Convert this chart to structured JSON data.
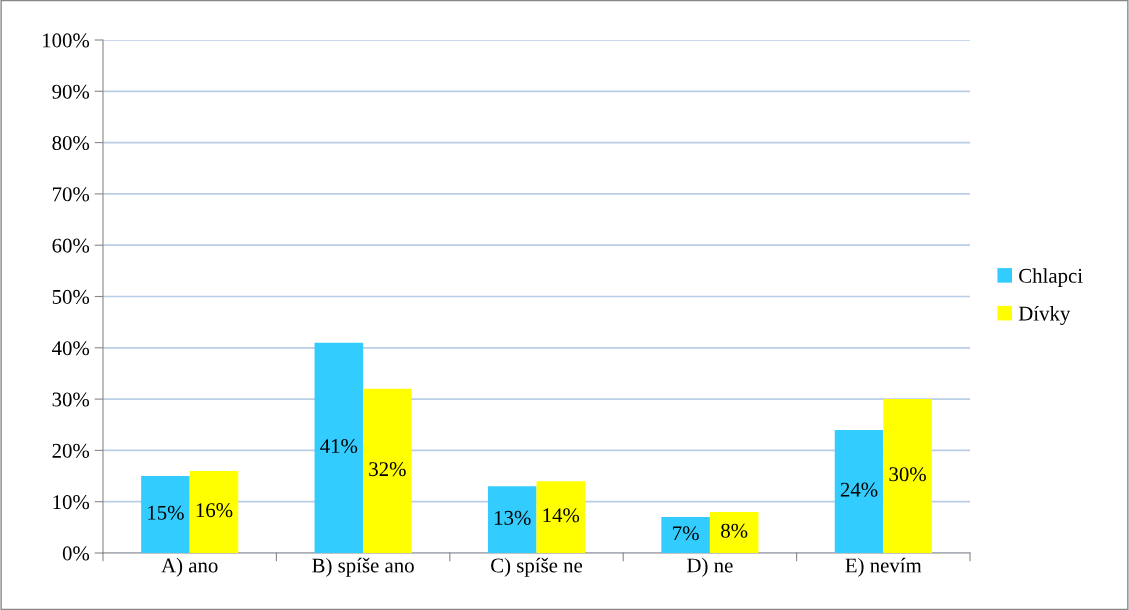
{
  "chart_data": {
    "type": "bar",
    "categories": [
      "A) ano",
      "B) spíše ano",
      "C) spíše ne",
      "D) ne",
      "E) nevím"
    ],
    "series": [
      {
        "name": "Chlapci",
        "color": "#33ccff",
        "values": [
          15,
          41,
          13,
          7,
          24
        ],
        "value_labels": [
          "15%",
          "41%",
          "13%",
          "7%",
          "24%"
        ]
      },
      {
        "name": "Dívky",
        "color": "#ffff00",
        "values": [
          16,
          32,
          14,
          8,
          30
        ],
        "value_labels": [
          "16%",
          "32%",
          "14%",
          "8%",
          "30%"
        ]
      }
    ],
    "ylim": [
      0,
      100
    ],
    "yticks": [
      {
        "value": 0,
        "label": "0%"
      },
      {
        "value": 10,
        "label": "10%"
      },
      {
        "value": 20,
        "label": "20%"
      },
      {
        "value": 30,
        "label": "30%"
      },
      {
        "value": 40,
        "label": "40%"
      },
      {
        "value": 50,
        "label": "50%"
      },
      {
        "value": 60,
        "label": "60%"
      },
      {
        "value": 70,
        "label": "70%"
      },
      {
        "value": 80,
        "label": "80%"
      },
      {
        "value": 90,
        "label": "90%"
      },
      {
        "value": 100,
        "label": "100%"
      }
    ],
    "grid": "y",
    "legend": "right"
  }
}
